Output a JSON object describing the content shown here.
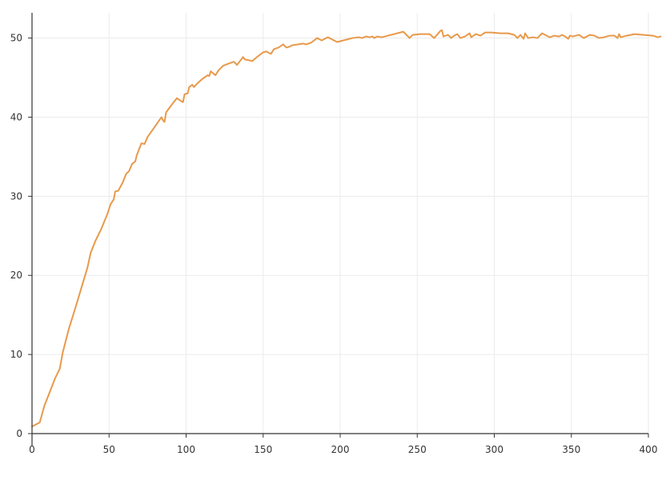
{
  "chart_data": {
    "type": "line",
    "title": "",
    "xlabel": "",
    "ylabel": "",
    "xlim": [
      0,
      400
    ],
    "ylim": [
      0,
      54
    ],
    "grid": true,
    "x_ticks": [
      0,
      50,
      100,
      150,
      200,
      250,
      300,
      350,
      400
    ],
    "y_ticks": [
      0,
      10,
      20,
      30,
      40,
      50
    ],
    "series": [
      {
        "color": "#e8994a",
        "points": [
          [
            0,
            0.9
          ],
          [
            5,
            1.4
          ],
          [
            8,
            3.5
          ],
          [
            12,
            5.5
          ],
          [
            15,
            7.0
          ],
          [
            18,
            8.2
          ],
          [
            20,
            10.3
          ],
          [
            24,
            13.3
          ],
          [
            28,
            15.8
          ],
          [
            32,
            18.4
          ],
          [
            36,
            21.0
          ],
          [
            38,
            22.8
          ],
          [
            41,
            24.3
          ],
          [
            45,
            25.9
          ],
          [
            49,
            27.8
          ],
          [
            51,
            29.0
          ],
          [
            53,
            29.6
          ],
          [
            54,
            30.6
          ],
          [
            56,
            30.7
          ],
          [
            59,
            31.8
          ],
          [
            61,
            32.8
          ],
          [
            63,
            33.2
          ],
          [
            65,
            34.1
          ],
          [
            67,
            34.4
          ],
          [
            68,
            35.2
          ],
          [
            71,
            36.7
          ],
          [
            73,
            36.6
          ],
          [
            75,
            37.5
          ],
          [
            79,
            38.6
          ],
          [
            84,
            40.0
          ],
          [
            85,
            39.6
          ],
          [
            86,
            39.4
          ],
          [
            87,
            40.6
          ],
          [
            90,
            41.4
          ],
          [
            92,
            41.9
          ],
          [
            94,
            42.4
          ],
          [
            97,
            42.0
          ],
          [
            98,
            41.9
          ],
          [
            99,
            42.9
          ],
          [
            101,
            43.0
          ],
          [
            102,
            43.8
          ],
          [
            104,
            44.1
          ],
          [
            105,
            43.8
          ],
          [
            108,
            44.4
          ],
          [
            111,
            44.9
          ],
          [
            114,
            45.3
          ],
          [
            115,
            45.2
          ],
          [
            116,
            45.8
          ],
          [
            119,
            45.3
          ],
          [
            121,
            45.9
          ],
          [
            124,
            46.5
          ],
          [
            128,
            46.8
          ],
          [
            131,
            47.0
          ],
          [
            133,
            46.6
          ],
          [
            137,
            47.6
          ],
          [
            138,
            47.3
          ],
          [
            143,
            47.1
          ],
          [
            146,
            47.6
          ],
          [
            150,
            48.2
          ],
          [
            152,
            48.3
          ],
          [
            155,
            48.0
          ],
          [
            157,
            48.6
          ],
          [
            160,
            48.8
          ],
          [
            163,
            49.2
          ],
          [
            165,
            48.8
          ],
          [
            167,
            48.9
          ],
          [
            169,
            49.1
          ],
          [
            176,
            49.3
          ],
          [
            178,
            49.2
          ],
          [
            181,
            49.4
          ],
          [
            185,
            50.0
          ],
          [
            188,
            49.7
          ],
          [
            192,
            50.1
          ],
          [
            198,
            49.5
          ],
          [
            204,
            49.8
          ],
          [
            208,
            50.0
          ],
          [
            212,
            50.1
          ],
          [
            214,
            50.0
          ],
          [
            217,
            50.2
          ],
          [
            219,
            50.1
          ],
          [
            221,
            50.2
          ],
          [
            222,
            50.0
          ],
          [
            224,
            50.2
          ],
          [
            227,
            50.1
          ],
          [
            241,
            50.8
          ],
          [
            245,
            50.0
          ],
          [
            247,
            50.4
          ],
          [
            252,
            50.5
          ],
          [
            258,
            50.5
          ],
          [
            261,
            50.0
          ],
          [
            265,
            50.9
          ],
          [
            266,
            51.0
          ],
          [
            267,
            50.2
          ],
          [
            270,
            50.4
          ],
          [
            272,
            50.0
          ],
          [
            274,
            50.3
          ],
          [
            276,
            50.5
          ],
          [
            278,
            50.0
          ],
          [
            281,
            50.2
          ],
          [
            284,
            50.6
          ],
          [
            285,
            50.1
          ],
          [
            288,
            50.5
          ],
          [
            291,
            50.3
          ],
          [
            294,
            50.7
          ],
          [
            298,
            50.7
          ],
          [
            304,
            50.6
          ],
          [
            309,
            50.6
          ],
          [
            313,
            50.4
          ],
          [
            315,
            50.0
          ],
          [
            317,
            50.4
          ],
          [
            319,
            49.9
          ],
          [
            320,
            50.6
          ],
          [
            322,
            50.0
          ],
          [
            325,
            50.1
          ],
          [
            328,
            50.0
          ],
          [
            331,
            50.6
          ],
          [
            335,
            50.2
          ],
          [
            336,
            50.1
          ],
          [
            339,
            50.3
          ],
          [
            342,
            50.2
          ],
          [
            344,
            50.4
          ],
          [
            346,
            50.2
          ],
          [
            348,
            49.9
          ],
          [
            349,
            50.3
          ],
          [
            351,
            50.2
          ],
          [
            353,
            50.3
          ],
          [
            355,
            50.4
          ],
          [
            358,
            50.0
          ],
          [
            362,
            50.4
          ],
          [
            365,
            50.3
          ],
          [
            368,
            50.0
          ],
          [
            371,
            50.1
          ],
          [
            375,
            50.3
          ],
          [
            378,
            50.3
          ],
          [
            380,
            50.0
          ],
          [
            381,
            50.5
          ],
          [
            382,
            50.1
          ],
          [
            386,
            50.3
          ],
          [
            391,
            50.5
          ],
          [
            397,
            50.4
          ],
          [
            403,
            50.3
          ],
          [
            406,
            50.1
          ],
          [
            408,
            50.2
          ]
        ]
      }
    ]
  }
}
